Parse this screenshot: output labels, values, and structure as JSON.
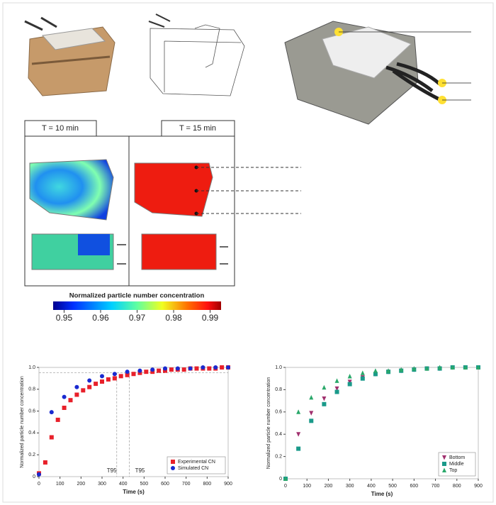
{
  "panels": {
    "left_title": "T = 10 min",
    "right_title": "T = 15 min"
  },
  "colorbar": {
    "title": "Normalized particle number concentration",
    "lim": [
      0.947,
      0.993
    ],
    "ticks": [
      0.95,
      0.96,
      0.97,
      0.98,
      0.99
    ]
  },
  "chart_data": [
    {
      "type": "scatter",
      "xlabel": "Time (s)",
      "ylabel": "Normalized particle number concentration",
      "xlim": [
        0,
        900
      ],
      "xticks": [
        0,
        100,
        200,
        300,
        400,
        500,
        600,
        700,
        800,
        900
      ],
      "ylim": [
        0,
        1
      ],
      "yticks": [
        0,
        0.2,
        0.4,
        0.6,
        0.8,
        {
          "value": 1,
          "label": "1.0"
        }
      ],
      "legend": "lower right",
      "threshold": 0.95,
      "annotations": [
        {
          "text": "T95",
          "x": 370,
          "color": "#3a3ad0"
        },
        {
          "text": "T95",
          "x": 430,
          "color": "#e02020"
        }
      ],
      "series": [
        {
          "name": "Experimental CN",
          "color": "#e8202a",
          "marker": "square",
          "x": [
            0,
            30,
            60,
            90,
            120,
            150,
            180,
            210,
            240,
            270,
            300,
            330,
            360,
            390,
            420,
            450,
            480,
            510,
            540,
            570,
            600,
            630,
            660,
            690,
            720,
            750,
            780,
            810,
            840,
            870,
            900
          ],
          "values": [
            0.03,
            0.13,
            0.36,
            0.52,
            0.63,
            0.7,
            0.75,
            0.79,
            0.82,
            0.85,
            0.87,
            0.89,
            0.9,
            0.92,
            0.93,
            0.94,
            0.95,
            0.96,
            0.96,
            0.97,
            0.97,
            0.98,
            0.98,
            0.98,
            0.99,
            0.99,
            0.99,
            0.99,
            0.99,
            1,
            1
          ]
        },
        {
          "name": "Simulated CN",
          "color": "#1a2ad0",
          "marker": "circle",
          "x": [
            0,
            60,
            120,
            180,
            240,
            300,
            360,
            420,
            480,
            540,
            600,
            660,
            720,
            780,
            840,
            900
          ],
          "values": [
            0.02,
            0.59,
            0.73,
            0.82,
            0.88,
            0.92,
            0.94,
            0.96,
            0.97,
            0.98,
            0.99,
            0.99,
            0.99,
            1,
            1,
            1
          ]
        }
      ]
    },
    {
      "type": "scatter",
      "xlabel": "Time (s)",
      "ylabel": "Normalized particle number concentration",
      "xlim": [
        0,
        900
      ],
      "xticks": [
        0,
        100,
        200,
        300,
        400,
        500,
        600,
        700,
        800,
        900
      ],
      "ylim": [
        0,
        1
      ],
      "yticks": [
        0,
        0.2,
        0.4,
        0.6,
        0.8,
        {
          "value": 1,
          "label": "1.0"
        }
      ],
      "legend": "lower right",
      "series": [
        {
          "name": "Bottom",
          "color": "#a0306e",
          "marker": "triangle-down",
          "x": [
            0,
            60,
            120,
            180,
            240,
            300,
            360,
            420,
            480,
            540,
            600,
            660,
            720,
            780,
            840,
            900
          ],
          "values": [
            0,
            0.4,
            0.59,
            0.72,
            0.81,
            0.87,
            0.91,
            0.94,
            0.96,
            0.97,
            0.98,
            0.99,
            0.99,
            1,
            1,
            1
          ]
        },
        {
          "name": "Middle",
          "color": "#1a9a8a",
          "marker": "square",
          "x": [
            0,
            60,
            120,
            180,
            240,
            300,
            360,
            420,
            480,
            540,
            600,
            660,
            720,
            780,
            840,
            900
          ],
          "values": [
            0,
            0.27,
            0.52,
            0.67,
            0.78,
            0.85,
            0.9,
            0.94,
            0.96,
            0.97,
            0.98,
            0.99,
            0.99,
            1,
            1,
            1
          ]
        },
        {
          "name": "Top",
          "color": "#2aa86a",
          "marker": "triangle-up",
          "x": [
            0,
            60,
            120,
            180,
            240,
            300,
            360,
            420,
            480,
            540,
            600,
            660,
            720,
            780,
            840,
            900
          ],
          "values": [
            0,
            0.6,
            0.73,
            0.82,
            0.88,
            0.92,
            0.95,
            0.97,
            0.97,
            0.98,
            0.99,
            0.99,
            1,
            1,
            1,
            1
          ]
        }
      ]
    }
  ]
}
